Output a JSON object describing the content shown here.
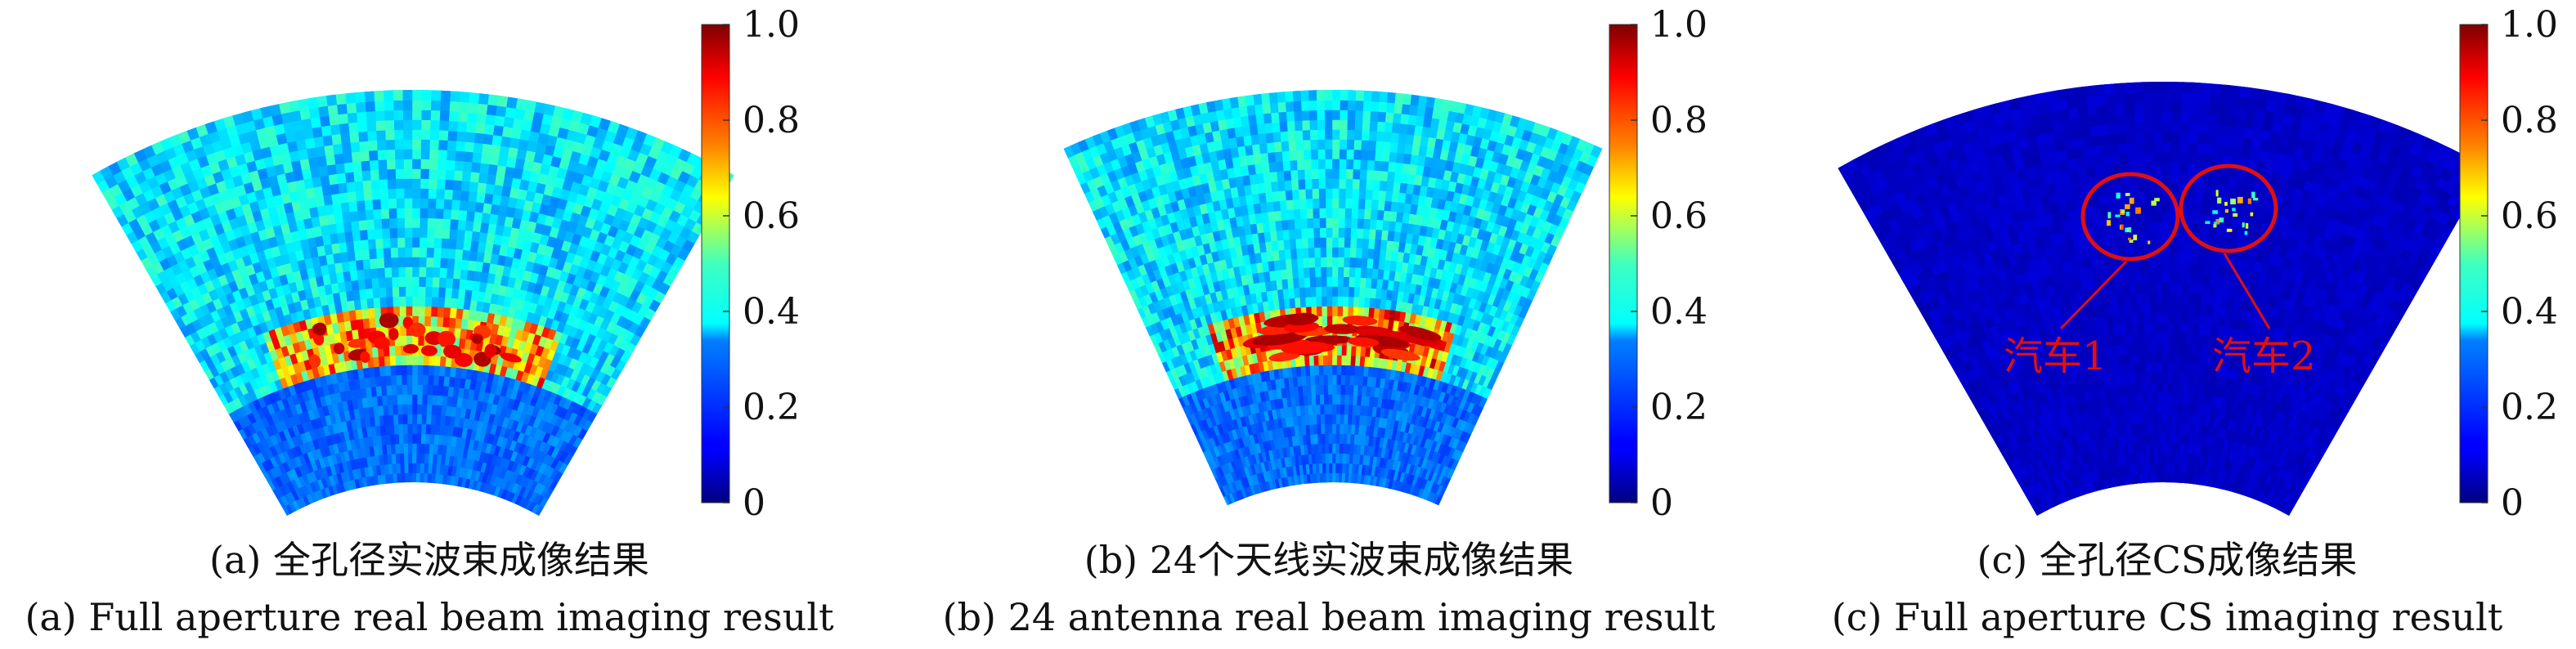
{
  "chart_data": [
    {
      "type": "heatmap",
      "shape": "sector",
      "colormap": "jet",
      "zlim": [
        0,
        1
      ],
      "colorbar_ticks": [
        "0",
        "0.2",
        "0.4",
        "0.6",
        "0.8",
        "1.0"
      ],
      "caption_cn": "(a) 全孔径实波束成像结果",
      "caption_en": "(a) Full aperture real beam imaging result",
      "background_level": 0.3,
      "near_level": 0.18,
      "hot_band_level": 0.8,
      "annotations": []
    },
    {
      "type": "heatmap",
      "shape": "sector",
      "colormap": "jet",
      "zlim": [
        0,
        1
      ],
      "colorbar_ticks": [
        "0",
        "0.2",
        "0.4",
        "0.6",
        "0.8",
        "1.0"
      ],
      "caption_cn": "(b) 24个天线实波束成像结果",
      "caption_en": "(b) 24 antenna real beam imaging result",
      "background_level": 0.3,
      "near_level": 0.18,
      "hot_band_level": 0.85,
      "annotations": []
    },
    {
      "type": "heatmap",
      "shape": "sector",
      "colormap": "jet",
      "zlim": [
        0,
        1
      ],
      "colorbar_ticks": [
        "0",
        "0.2",
        "0.4",
        "0.6",
        "0.8",
        "1.0"
      ],
      "caption_cn": "(c) 全孔径CS成像结果",
      "caption_en": "(c) Full aperture CS imaging result",
      "background_level": 0.05,
      "near_level": 0.05,
      "hot_band_level": 0.0,
      "annotations": [
        {
          "label": "汽车1",
          "color": "#e01010"
        },
        {
          "label": "汽车2",
          "color": "#e01010"
        }
      ]
    }
  ]
}
